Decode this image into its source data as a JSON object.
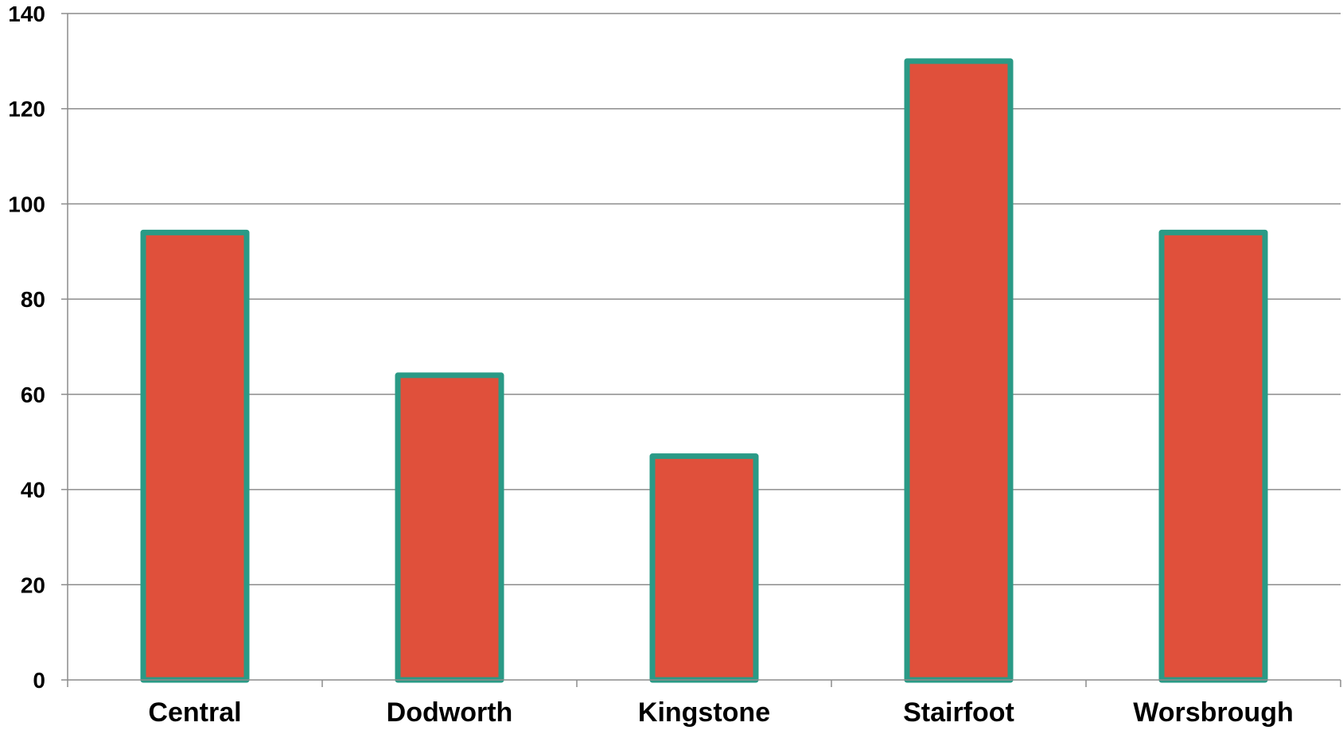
{
  "chart_data": {
    "type": "bar",
    "categories": [
      "Central",
      "Dodworth",
      "Kingstone",
      "Stairfoot",
      "Worsbrough"
    ],
    "values": [
      94,
      64,
      47,
      130,
      94
    ],
    "ylim": [
      0,
      140
    ],
    "yticks": [
      "0",
      "20",
      "40",
      "60",
      "80",
      "100",
      "120",
      "140"
    ],
    "grid": true,
    "legend": "none",
    "colors": {
      "bar_fill": "#e0503b",
      "bar_border": "#2a9a86",
      "grid": "#8c8c8c",
      "axis": "#8c8c8c"
    }
  }
}
